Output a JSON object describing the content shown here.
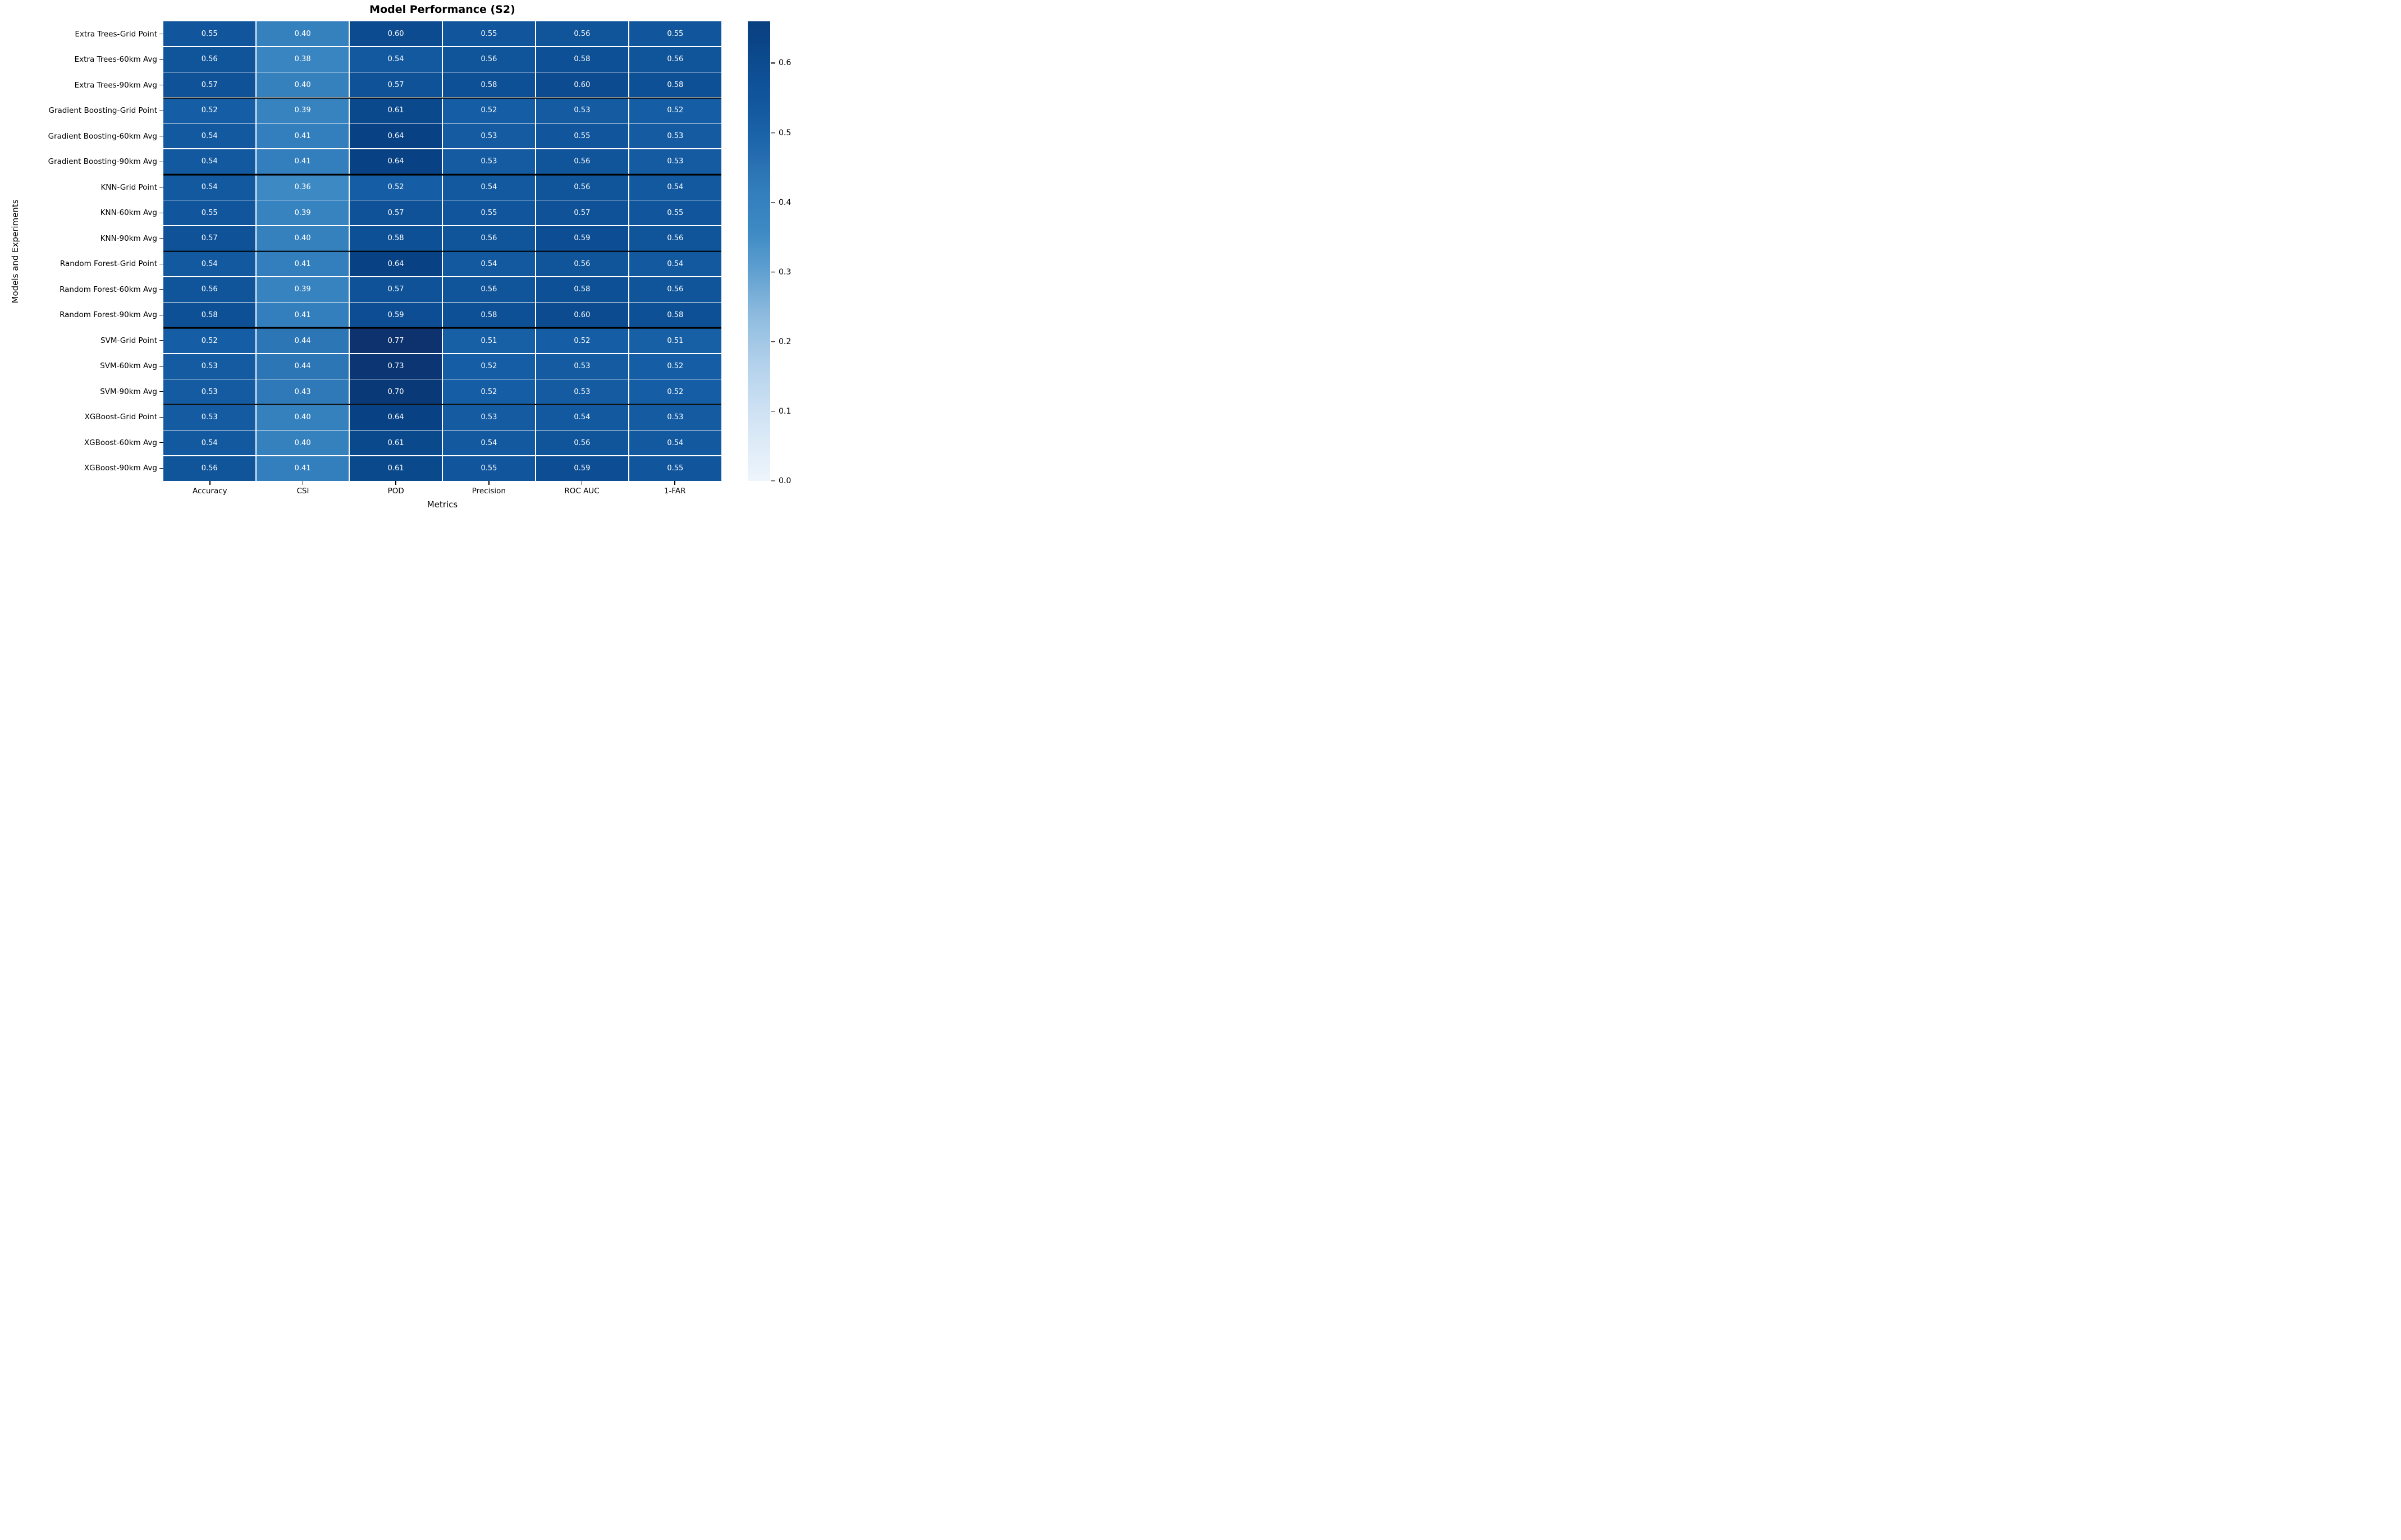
{
  "chart_data": {
    "type": "heatmap",
    "title": "Model Performance (S2)",
    "xlabel": "Metrics",
    "ylabel": "Models and Experiments",
    "columns": [
      "Accuracy",
      "CSI",
      "POD",
      "Precision",
      "ROC AUC",
      "1-FAR"
    ],
    "rows": [
      "Extra Trees-Grid Point",
      "Extra Trees-60km Avg",
      "Extra Trees-90km Avg",
      "Gradient Boosting-Grid Point",
      "Gradient Boosting-60km Avg",
      "Gradient Boosting-90km Avg",
      "KNN-Grid Point",
      "KNN-60km Avg",
      "KNN-90km Avg",
      "Random Forest-Grid Point",
      "Random Forest-60km Avg",
      "Random Forest-90km Avg",
      "SVM-Grid Point",
      "SVM-60km Avg",
      "SVM-90km Avg",
      "XGBoost-Grid Point",
      "XGBoost-60km Avg",
      "XGBoost-90km Avg"
    ],
    "values": [
      [
        0.55,
        0.4,
        0.6,
        0.55,
        0.56,
        0.55
      ],
      [
        0.56,
        0.38,
        0.54,
        0.56,
        0.58,
        0.56
      ],
      [
        0.57,
        0.4,
        0.57,
        0.58,
        0.6,
        0.58
      ],
      [
        0.52,
        0.39,
        0.61,
        0.52,
        0.53,
        0.52
      ],
      [
        0.54,
        0.41,
        0.64,
        0.53,
        0.55,
        0.53
      ],
      [
        0.54,
        0.41,
        0.64,
        0.53,
        0.56,
        0.53
      ],
      [
        0.54,
        0.36,
        0.52,
        0.54,
        0.56,
        0.54
      ],
      [
        0.55,
        0.39,
        0.57,
        0.55,
        0.57,
        0.55
      ],
      [
        0.57,
        0.4,
        0.58,
        0.56,
        0.59,
        0.56
      ],
      [
        0.54,
        0.41,
        0.64,
        0.54,
        0.56,
        0.54
      ],
      [
        0.56,
        0.39,
        0.57,
        0.56,
        0.58,
        0.56
      ],
      [
        0.58,
        0.41,
        0.59,
        0.58,
        0.6,
        0.58
      ],
      [
        0.52,
        0.44,
        0.77,
        0.51,
        0.52,
        0.51
      ],
      [
        0.53,
        0.44,
        0.73,
        0.52,
        0.53,
        0.52
      ],
      [
        0.53,
        0.43,
        0.7,
        0.52,
        0.53,
        0.52
      ],
      [
        0.53,
        0.4,
        0.64,
        0.53,
        0.54,
        0.53
      ],
      [
        0.54,
        0.4,
        0.61,
        0.54,
        0.56,
        0.54
      ],
      [
        0.56,
        0.41,
        0.61,
        0.55,
        0.59,
        0.55
      ]
    ],
    "value_format_decimals": 2,
    "cell_text_color": "#ffffff",
    "grid_line_color": "#ffffff",
    "group_separator_color": "#000000",
    "group_separator_after_rows": [
      3,
      6,
      9,
      12,
      15
    ],
    "colormap": "Blues",
    "color_scale_anchors": [
      {
        "value": 0.0,
        "color": "#eef5fc"
      },
      {
        "value": 0.08,
        "color": "#d5e6f5"
      },
      {
        "value": 0.16,
        "color": "#b7d4ed"
      },
      {
        "value": 0.24,
        "color": "#8cbade"
      },
      {
        "value": 0.3,
        "color": "#61a0d0"
      },
      {
        "value": 0.36,
        "color": "#3c89c4"
      },
      {
        "value": 0.4,
        "color": "#3581be"
      },
      {
        "value": 0.44,
        "color": "#2d76b6"
      },
      {
        "value": 0.48,
        "color": "#2068ac"
      },
      {
        "value": 0.52,
        "color": "#155da4"
      },
      {
        "value": 0.56,
        "color": "#10549a"
      },
      {
        "value": 0.6,
        "color": "#0c4b90"
      },
      {
        "value": 0.64,
        "color": "#094284"
      },
      {
        "value": 0.68,
        "color": "#093b7a"
      },
      {
        "value": 0.77,
        "color": "#0e326d"
      }
    ],
    "colorbar": {
      "vmin": 0.0,
      "vmax": 0.66,
      "ticks": [
        "0.0",
        "0.1",
        "0.2",
        "0.3",
        "0.4",
        "0.5",
        "0.6"
      ],
      "tick_values": [
        0.0,
        0.1,
        0.2,
        0.3,
        0.4,
        0.5,
        0.6
      ]
    }
  }
}
